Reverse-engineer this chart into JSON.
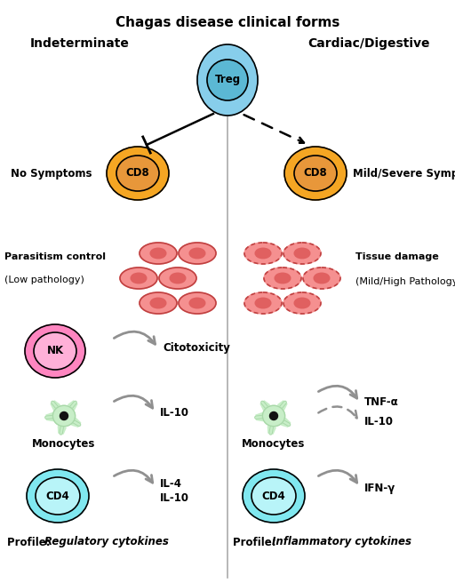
{
  "title": "Chagas disease clinical forms",
  "left_header": "Indeterminate",
  "right_header": "Cardiac/Digestive",
  "treg_label": "Treg",
  "cd8_label": "CD8",
  "nk_label": "NK",
  "cd4_label": "CD4",
  "no_symptoms": "No Symptoms",
  "mild_severe": "Mild/Severe Symptoms",
  "parasitism": "Parasitism control",
  "low_path": "(Low pathology)",
  "tissue_damage": "Tissue damage",
  "mild_high": "(Mild/High Pathology)",
  "citotoxicity": "Citotoxicity",
  "il10_left": "IL-10",
  "monocytes": "Monocytes",
  "il4": "IL-4",
  "il10_2": "IL-10",
  "tnf_alpha": "TNF-α",
  "il10_right": "IL-10",
  "ifn_gamma": "IFN-γ",
  "profile_left": "Profile: ",
  "profile_left_italic": "Regulatory cytokines",
  "profile_right": "Profile: ",
  "profile_right_italic": "Inflammatory cytokines",
  "bg_color": "#ffffff",
  "treg_outer_color": "#87CEEB",
  "treg_inner_color": "#5BB8D4",
  "cd8_outer_color": "#F5A623",
  "cd8_inner_color": "#E8973A",
  "nk_outer_color": "#FF85C0",
  "nk_inner_color": "#FFB0D8",
  "cd4_outer_color": "#80E8F0",
  "cd4_inner_color": "#B8F4F8",
  "cell_fill": "#F59090",
  "cell_inner": "#E06060",
  "cell_border_solid": "#C04040",
  "arrow_gray": "#909090",
  "divider_color": "#AAAAAA",
  "mono_body": "#C8EEC8",
  "mono_arm": "#A8D8A8",
  "mono_nucleus": "#111111"
}
